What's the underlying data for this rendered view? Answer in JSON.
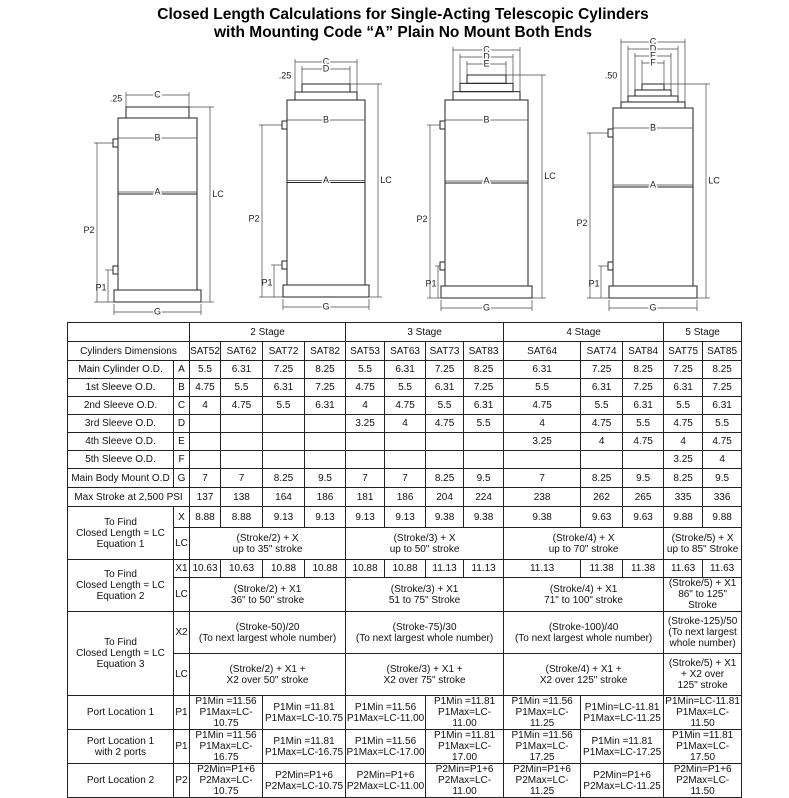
{
  "header": {
    "title": "Closed Length Calculations for Single-Acting Telescopic Cylinders",
    "subtitle": "with Mounting Code “A” Plain No Mount Both Ends"
  },
  "diagrams": [
    {
      "note": ".25",
      "step_dims": [
        "C"
      ],
      "width_dims": [
        "B",
        "A"
      ],
      "height_dims": [
        "LC",
        "P2",
        "P1"
      ],
      "base_dim": "G"
    },
    {
      "note": ".25",
      "step_dims": [
        "C",
        "D"
      ],
      "width_dims": [
        "B",
        "A"
      ],
      "height_dims": [
        "LC",
        "P2",
        "P1"
      ],
      "base_dim": "G"
    },
    {
      "step_dims": [
        "C",
        "D",
        "E"
      ],
      "width_dims": [
        "B",
        "A"
      ],
      "height_dims": [
        "LC",
        "P2",
        "P1"
      ],
      "base_dim": "G"
    },
    {
      "note": ".50",
      "step_dims": [
        "C",
        "D",
        "E",
        "F"
      ],
      "width_dims": [
        "B",
        "A"
      ],
      "height_dims": [
        "LC",
        "P2",
        "P1"
      ],
      "base_dim": "G"
    }
  ],
  "table": {
    "stage_header": [
      "2 Stage",
      "3 Stage",
      "4 Stage",
      "5 Stage"
    ],
    "dims_label": "Cylinders Dimensions",
    "models": [
      [
        "SAT52",
        "SAT62",
        "SAT72",
        "SAT82"
      ],
      [
        "SAT53",
        "SAT63",
        "SAT73",
        "SAT83"
      ],
      [
        "SAT64",
        "SAT74",
        "SAT84"
      ],
      [
        "SAT75",
        "SAT85"
      ]
    ],
    "rows": [
      {
        "label": "Main Cylinder O.D.",
        "code": "A",
        "groups": [
          [
            5.5,
            6.31,
            7.25,
            8.25
          ],
          [
            5.5,
            6.31,
            7.25,
            8.25
          ],
          [
            6.31,
            7.25,
            8.25
          ],
          [
            7.25,
            8.25
          ]
        ]
      },
      {
        "label": "1st Sleeve O.D.",
        "code": "B",
        "groups": [
          [
            4.75,
            5.5,
            6.31,
            7.25
          ],
          [
            4.75,
            5.5,
            6.31,
            7.25
          ],
          [
            5.5,
            6.31,
            7.25
          ],
          [
            6.31,
            7.25
          ]
        ]
      },
      {
        "label": "2nd Sleeve O.D.",
        "code": "C",
        "groups": [
          [
            4,
            4.75,
            5.5,
            6.31
          ],
          [
            4,
            4.75,
            5.5,
            6.31
          ],
          [
            4.75,
            5.5,
            6.31
          ],
          [
            5.5,
            6.31
          ]
        ]
      },
      {
        "label": "3rd Sleeve O.D.",
        "code": "D",
        "groups": [
          [
            null,
            null,
            null,
            null
          ],
          [
            3.25,
            4,
            4.75,
            5.5
          ],
          [
            4,
            4.75,
            5.5
          ],
          [
            4.75,
            5.5
          ]
        ]
      },
      {
        "label": "4th Sleeve O.D.",
        "code": "E",
        "groups": [
          [
            null,
            null,
            null,
            null
          ],
          [
            null,
            null,
            null,
            null
          ],
          [
            3.25,
            4,
            4.75
          ],
          [
            4,
            4.75
          ]
        ]
      },
      {
        "label": "5th Sleeve O.D.",
        "code": "F",
        "groups": [
          [
            null,
            null,
            null,
            null
          ],
          [
            null,
            null,
            null,
            null
          ],
          [
            null,
            null,
            null
          ],
          [
            3.25,
            4
          ]
        ]
      },
      {
        "label": "Main Body Mount O.D",
        "code": "G",
        "groups": [
          [
            7,
            7,
            8.25,
            9.5
          ],
          [
            7,
            7,
            8.25,
            9.5
          ],
          [
            7,
            8.25,
            9.5
          ],
          [
            8.25,
            9.5
          ]
        ]
      },
      {
        "label": "Max Stroke at 2,500 PSI",
        "groups": [
          [
            137,
            138,
            164,
            186
          ],
          [
            181,
            186,
            204,
            224
          ],
          [
            238,
            262,
            265
          ],
          [
            335,
            336
          ]
        ]
      }
    ],
    "sections": [
      {
        "label": "To Find\nClosed Length = LC\nEquation 1",
        "rows": [
          {
            "code": "X",
            "groups": [
              [
                8.88,
                8.88,
                9.13,
                9.13
              ],
              [
                9.13,
                9.13,
                9.38,
                9.38
              ],
              [
                9.38,
                9.63,
                9.63
              ],
              [
                9.88,
                9.88
              ]
            ]
          },
          {
            "code": "LC",
            "groups": [
              [
                "(Stroke/2) + X\nup to 35\" stroke"
              ],
              [
                "(Stroke/3) + X\nup to 50\" stroke"
              ],
              [
                "(Stroke/4) + X\nup to 70\" stroke"
              ],
              [
                "(Stroke/5) + X\nup to 85\" Stroke"
              ]
            ]
          }
        ]
      },
      {
        "label": "To Find\nClosed Length = LC\nEquation 2",
        "rows": [
          {
            "code": "X1",
            "groups": [
              [
                10.63,
                10.63,
                10.88,
                10.88
              ],
              [
                10.88,
                10.88,
                11.13,
                11.13
              ],
              [
                11.13,
                11.38,
                11.38
              ],
              [
                11.63,
                11.63
              ]
            ]
          },
          {
            "code": "LC",
            "groups": [
              [
                "(Stroke/2) + X1\n36\" to 50\" stroke"
              ],
              [
                "(Stroke/3) + X1\n51 to 75\" Stroke"
              ],
              [
                "(Stroke/4) + X1\n71\" to 100\" stroke"
              ],
              [
                "(Stroke/5) + X1\n86\" to 125\" Stroke"
              ]
            ]
          }
        ]
      },
      {
        "label": "To Find\nClosed Length = LC\nEquation 3",
        "rows": [
          {
            "code": "X2",
            "groups": [
              [
                "(Stroke-50)/20\n(To next largest whole number)"
              ],
              [
                "(Stroke-75)/30\n(To next largest whole number)"
              ],
              [
                "(Stroke-100)/40\n(To next largest whole number)"
              ],
              [
                "(Stroke-125)/50\n(To next largest\nwhole number)"
              ]
            ]
          },
          {
            "code": "LC",
            "groups": [
              [
                "(Stroke/2) + X1 +\nX2 over 50\" stroke"
              ],
              [
                "(Stroke/3) + X1 +\nX2 over 75\" stroke"
              ],
              [
                "(Stroke/4) + X1 +\nX2 over 125\" stroke"
              ],
              [
                "(Stroke/5) + X1\n+ X2 over\n125\" stroke"
              ]
            ]
          }
        ]
      },
      {
        "label": "Port Location 1",
        "rows": [
          {
            "code": "P1",
            "groups": [
              [
                "P1Min =11.56\nP1Max=LC-10.75",
                "P1Min =11.81\nP1Max=LC-10.75"
              ],
              [
                "P1Min =11.56\nP1Max=LC-11.00",
                "P1Min =11.81\nP1Max=LC-11.00"
              ],
              [
                "P1Min =11.56\nP1Max=LC-11.25",
                "P1Min=LC-11.81\nP1Max=LC-11.25"
              ],
              [
                "P1Min=LC-11.81\nP1Max=LC-11.50"
              ]
            ]
          }
        ]
      },
      {
        "label": "Port Location 1\nwith 2 ports",
        "rows": [
          {
            "code": "P1",
            "groups": [
              [
                "P1Min =11.56\nP1Max=LC-16.75",
                "P1Min =11.81\nP1Max=LC-16.75"
              ],
              [
                "P1Min =11.56\nP1Max=LC-17.00",
                "P1Min =11.81\nP1Max=LC-17.00"
              ],
              [
                "P1Min =11.56\nP1Max=LC-17.25",
                "P1Min =11.81\nP1Max=LC-17.25"
              ],
              [
                "P1Min =11.81\nP1Max=LC-17.50"
              ]
            ]
          }
        ]
      },
      {
        "label": "Port Location 2",
        "rows": [
          {
            "code": "P2",
            "groups": [
              [
                "P2Min=P1+6\nP2Max=LC-10.75",
                "P2Min=P1+6\nP2Max=LC-10.75"
              ],
              [
                "P2Min=P1+6\nP2Max=LC-11.00",
                "P2Min=P1+6\nP2Max=LC-11.00"
              ],
              [
                "P2Min=P1+6\nP2Max=LC-11.25",
                "P2Min=P1+6\nP2Max=LC-11.25"
              ],
              [
                "P2Min=P1+6\nP2Max=LC-11.50"
              ]
            ]
          }
        ]
      }
    ]
  }
}
